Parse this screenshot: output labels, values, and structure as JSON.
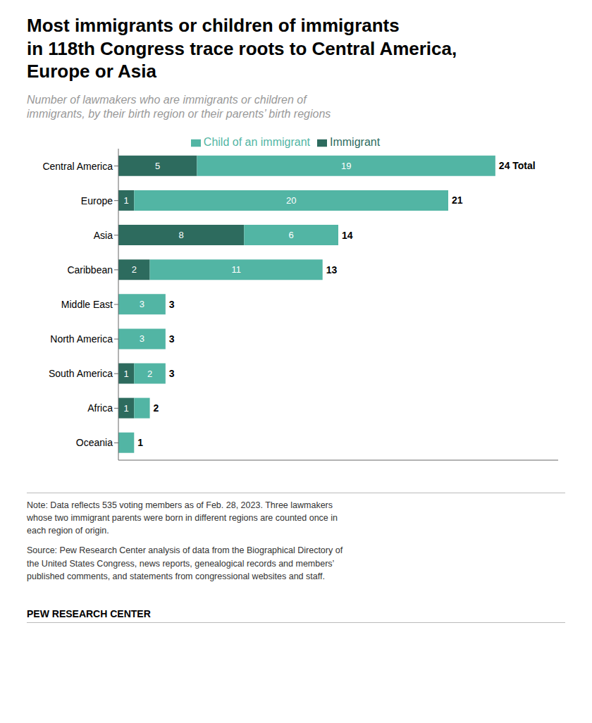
{
  "chart_data": {
    "type": "bar",
    "orientation": "horizontal",
    "stacked": true,
    "title": "Most immigrants or children of immigrants\nin 118th Congress trace roots to Central America,\nEurope or Asia",
    "subtitle": "Number of lawmakers who are immigrants or children of\nimmigrants, by their birth region or their parents’ birth regions",
    "categories": [
      "Central America",
      "Europe",
      "Asia",
      "Caribbean",
      "Middle East",
      "North America",
      "South America",
      "Africa",
      "Oceania"
    ],
    "series": [
      {
        "name": "Immigrant",
        "color": "#2d6b5e",
        "values": [
          5,
          1,
          8,
          2,
          0,
          0,
          1,
          1,
          0
        ],
        "value_labels": [
          "5",
          "1",
          "8",
          "2",
          null,
          null,
          "1",
          "1",
          null
        ]
      },
      {
        "name": "Child of an immigrant",
        "color": "#52b5a4",
        "values": [
          19,
          20,
          6,
          11,
          3,
          3,
          2,
          1,
          1
        ],
        "value_labels": [
          "19",
          "20",
          "6",
          "11",
          "3",
          "3",
          "2",
          null,
          null
        ]
      }
    ],
    "totals": [
      24,
      21,
      14,
      13,
      3,
      3,
      3,
      2,
      1
    ],
    "total_labels": [
      "24 Total",
      "21",
      "14",
      "13",
      "3",
      "3",
      "3",
      "2",
      "1"
    ],
    "data_labels": true,
    "xlim": [
      0,
      28
    ],
    "tick_labels": "y",
    "grid": false,
    "legend": "top",
    "note": "Note: Data reflects 535 voting members as of Feb. 28, 2023. Three lawmakers\nwhose two immigrant parents were born in different regions are counted once in\neach region of origin.",
    "source": "Source: Pew Research Center analysis of data from the Biographical Directory of\nthe United States Congress, news reports, genealogical records and members’\npublished comments, and statements from congressional websites and staff.",
    "footer": "PEW RESEARCH CENTER"
  }
}
